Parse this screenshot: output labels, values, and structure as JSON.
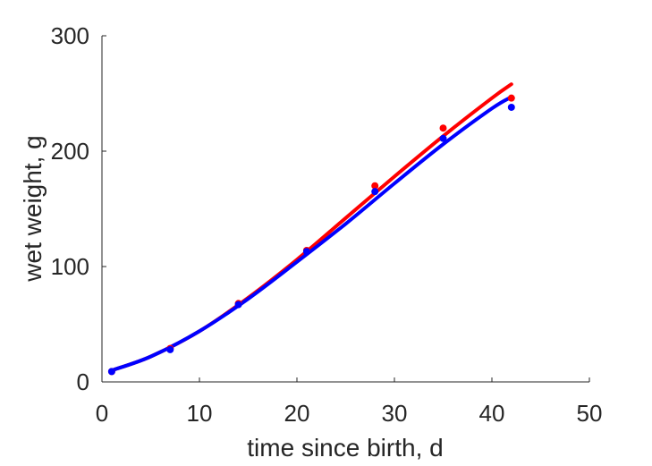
{
  "chart_data": {
    "type": "scatter",
    "title": "",
    "xlabel": "time since birth, d",
    "ylabel": "wet weight, g",
    "xlim": [
      0,
      50
    ],
    "ylim": [
      0,
      300
    ],
    "xticks": [
      "0",
      "10",
      "20",
      "30",
      "40",
      "50"
    ],
    "yticks": [
      "0",
      "100",
      "200",
      "300"
    ],
    "grid": false,
    "legend": "none",
    "series": [
      {
        "color": "#ff0000",
        "points": {
          "x": [
            1,
            7,
            14,
            21,
            28,
            35,
            42
          ],
          "y": [
            9,
            29,
            68,
            114,
            170,
            220,
            246
          ]
        },
        "curve": {
          "x": [
            1,
            5,
            10,
            15,
            20,
            25,
            30,
            35,
            40,
            42
          ],
          "y": [
            10,
            22,
            44,
            73,
            106,
            142,
            178,
            213,
            246,
            258
          ]
        }
      },
      {
        "color": "#0000ff",
        "points": {
          "x": [
            1,
            7,
            14,
            21,
            28,
            35,
            42
          ],
          "y": [
            9,
            28,
            67,
            113,
            165,
            211,
            238
          ]
        },
        "curve": {
          "x": [
            1,
            5,
            10,
            15,
            20,
            25,
            30,
            35,
            40,
            42
          ],
          "y": [
            10,
            22,
            44,
            72,
            104,
            137,
            172,
            206,
            237,
            247
          ]
        }
      }
    ]
  }
}
